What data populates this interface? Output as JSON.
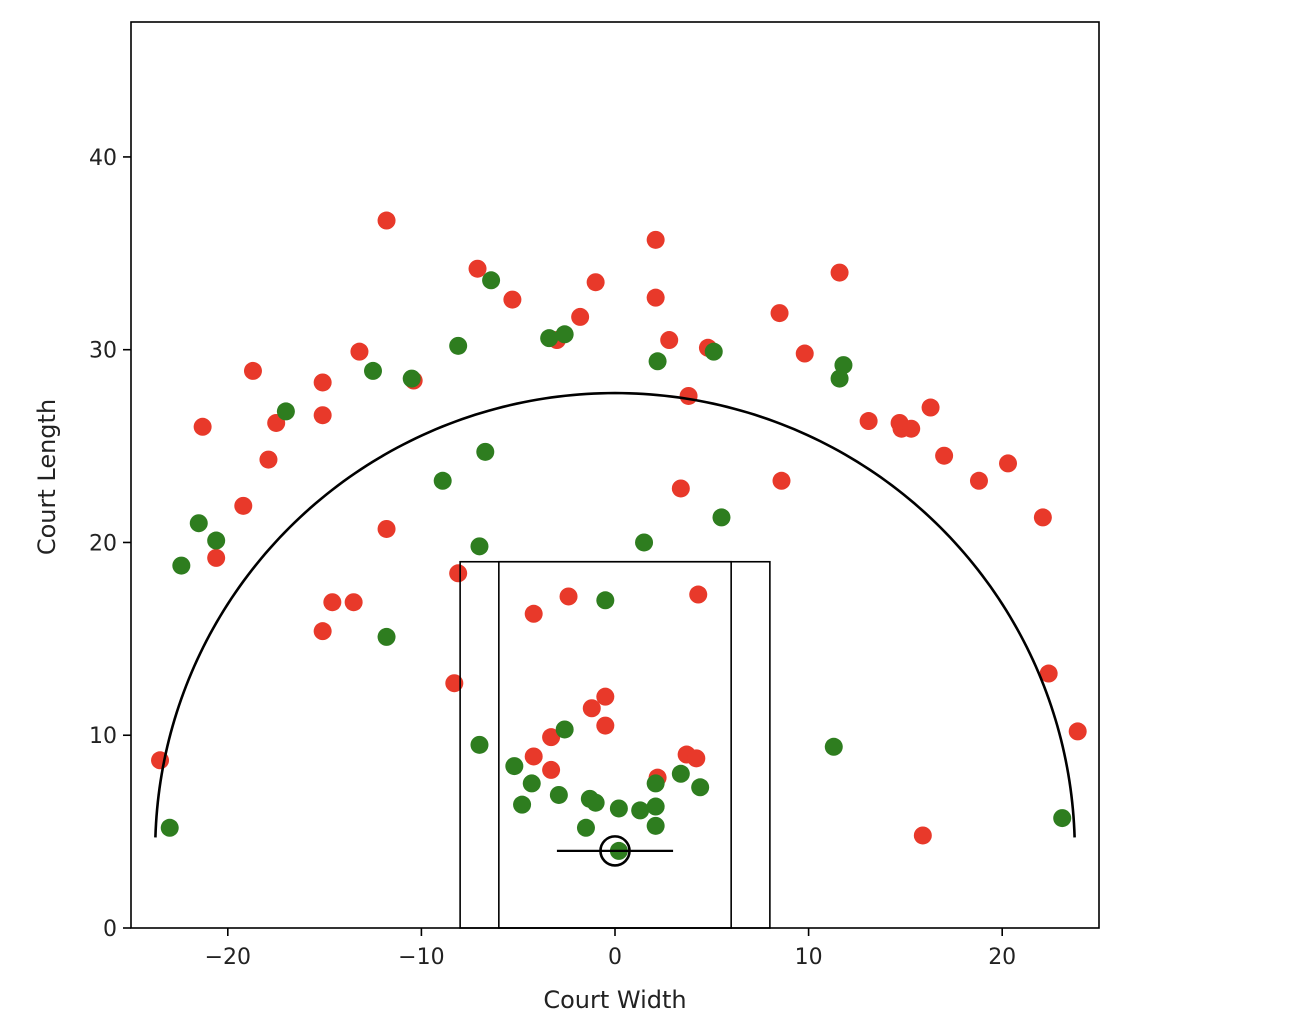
{
  "chart_data": {
    "type": "scatter",
    "title": "",
    "xlabel": "Court Width",
    "ylabel": "Court Length",
    "xlim": [
      -25,
      25
    ],
    "ylim": [
      0,
      47
    ],
    "xticks": [
      -20,
      -10,
      0,
      10,
      20
    ],
    "yticks": [
      0,
      10,
      20,
      30,
      40
    ],
    "xtick_labels": [
      "−20",
      "−10",
      "0",
      "10",
      "20"
    ],
    "ytick_labels": [
      "0",
      "10",
      "20",
      "30",
      "40"
    ],
    "grid": false,
    "legend": "none",
    "colors": {
      "made": "#2e7d1f",
      "missed": "#e8392a",
      "court_lines": "#000000"
    },
    "court": {
      "three_point_arc": {
        "center": [
          0,
          4
        ],
        "radius": 23.75,
        "y_floor": 4.7
      },
      "outer_lane": {
        "x": [
          -8,
          8
        ],
        "y": [
          0,
          19
        ]
      },
      "inner_lane": {
        "x": [
          -6,
          6
        ],
        "y": [
          0,
          19
        ]
      },
      "backboard": {
        "x": [
          -3,
          3
        ],
        "y": 4
      },
      "rim": {
        "center": [
          0,
          4
        ],
        "radius": 0.75
      }
    },
    "series": [
      {
        "name": "",
        "color": "#e8392a",
        "points": [
          [
            -23.5,
            8.7
          ],
          [
            -21.3,
            26.0
          ],
          [
            -20.6,
            19.2
          ],
          [
            -19.2,
            21.9
          ],
          [
            -18.7,
            28.9
          ],
          [
            -17.9,
            24.3
          ],
          [
            -17.5,
            26.2
          ],
          [
            -15.1,
            28.3
          ],
          [
            -15.1,
            26.6
          ],
          [
            -15.1,
            15.4
          ],
          [
            -14.6,
            16.9
          ],
          [
            -13.5,
            16.9
          ],
          [
            -13.2,
            29.9
          ],
          [
            -11.8,
            36.7
          ],
          [
            -11.8,
            20.7
          ],
          [
            -10.4,
            28.4
          ],
          [
            -8.3,
            12.7
          ],
          [
            -8.1,
            18.4
          ],
          [
            -7.1,
            34.2
          ],
          [
            -5.3,
            32.6
          ],
          [
            -4.2,
            16.3
          ],
          [
            -4.2,
            8.9
          ],
          [
            -3.3,
            9.9
          ],
          [
            -3.3,
            8.2
          ],
          [
            -3.0,
            30.5
          ],
          [
            -2.4,
            17.2
          ],
          [
            -1.8,
            31.7
          ],
          [
            -1.2,
            11.4
          ],
          [
            -1.0,
            33.5
          ],
          [
            -0.5,
            12.0
          ],
          [
            -0.5,
            10.5
          ],
          [
            2.1,
            35.7
          ],
          [
            2.1,
            32.7
          ],
          [
            2.2,
            7.8
          ],
          [
            2.8,
            30.5
          ],
          [
            3.4,
            22.8
          ],
          [
            3.7,
            9.0
          ],
          [
            3.8,
            27.6
          ],
          [
            4.2,
            8.8
          ],
          [
            4.3,
            17.3
          ],
          [
            4.8,
            30.1
          ],
          [
            8.5,
            31.9
          ],
          [
            8.6,
            23.2
          ],
          [
            9.8,
            29.8
          ],
          [
            11.6,
            34.0
          ],
          [
            13.1,
            26.3
          ],
          [
            14.7,
            26.2
          ],
          [
            14.8,
            25.9
          ],
          [
            15.3,
            25.9
          ],
          [
            15.9,
            4.8
          ],
          [
            16.3,
            27.0
          ],
          [
            17.0,
            24.5
          ],
          [
            18.8,
            23.2
          ],
          [
            20.3,
            24.1
          ],
          [
            22.1,
            21.3
          ],
          [
            22.4,
            13.2
          ],
          [
            23.9,
            10.2
          ]
        ]
      },
      {
        "name": "",
        "color": "#2e7d1f",
        "points": [
          [
            -23.0,
            5.2
          ],
          [
            -22.4,
            18.8
          ],
          [
            -21.5,
            21.0
          ],
          [
            -20.6,
            20.1
          ],
          [
            -17.0,
            26.8
          ],
          [
            -12.5,
            28.9
          ],
          [
            -11.8,
            15.1
          ],
          [
            -10.5,
            28.5
          ],
          [
            -8.9,
            23.2
          ],
          [
            -8.1,
            30.2
          ],
          [
            -7.0,
            19.8
          ],
          [
            -7.0,
            9.5
          ],
          [
            -6.7,
            24.7
          ],
          [
            -6.4,
            33.6
          ],
          [
            -5.2,
            8.4
          ],
          [
            -4.8,
            6.4
          ],
          [
            -4.3,
            7.5
          ],
          [
            -3.4,
            30.6
          ],
          [
            -2.9,
            6.9
          ],
          [
            -2.6,
            10.3
          ],
          [
            -2.6,
            30.8
          ],
          [
            -1.5,
            5.2
          ],
          [
            -1.3,
            6.7
          ],
          [
            -1.0,
            6.5
          ],
          [
            -0.5,
            17.0
          ],
          [
            0.2,
            4.0
          ],
          [
            0.2,
            6.2
          ],
          [
            1.3,
            6.1
          ],
          [
            1.5,
            20.0
          ],
          [
            2.1,
            6.3
          ],
          [
            2.1,
            7.5
          ],
          [
            2.1,
            5.3
          ],
          [
            2.2,
            29.4
          ],
          [
            3.4,
            8.0
          ],
          [
            4.4,
            7.3
          ],
          [
            5.1,
            29.9
          ],
          [
            5.5,
            21.3
          ],
          [
            11.3,
            9.4
          ],
          [
            11.6,
            28.5
          ],
          [
            11.8,
            29.2
          ],
          [
            23.1,
            5.7
          ]
        ]
      }
    ]
  }
}
